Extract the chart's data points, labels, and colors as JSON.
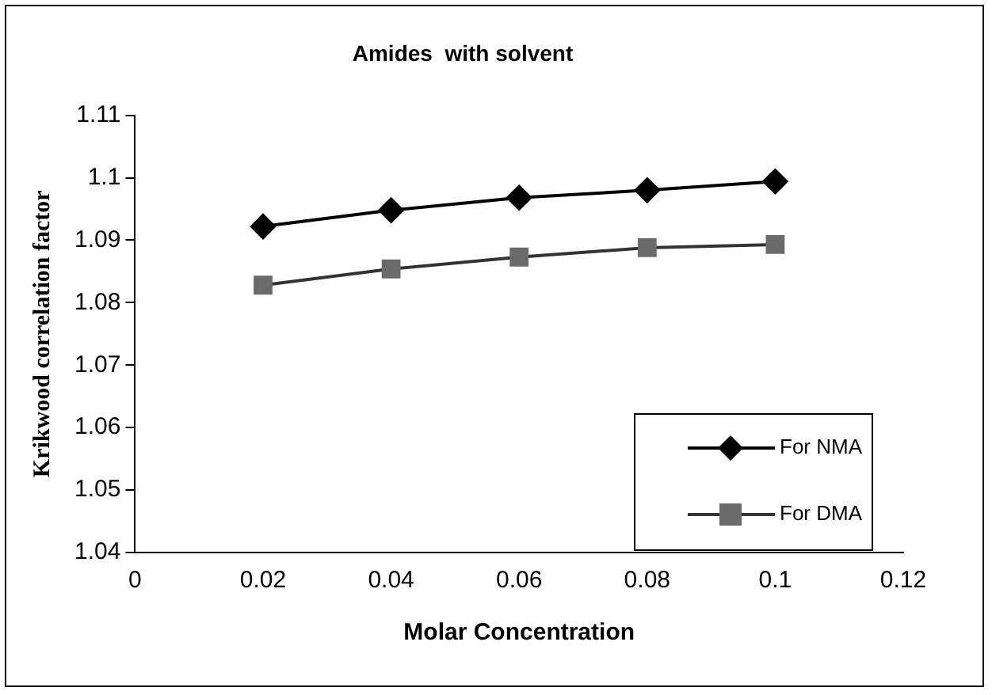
{
  "chart_data": {
    "type": "line",
    "title": "Amides  with solvent",
    "xlabel": "Molar Concentration",
    "ylabel": "Krikwood correlation factor",
    "x": [
      0.02,
      0.04,
      0.06,
      0.08,
      0.1
    ],
    "series": [
      {
        "name": "For NMA",
        "color": "#000000",
        "marker": "diamond",
        "values": [
          1.0922,
          1.0948,
          1.0968,
          1.098,
          1.0994
        ]
      },
      {
        "name": "For DMA",
        "color": "#6b6b6b",
        "marker": "square",
        "values": [
          1.0828,
          1.0854,
          1.0873,
          1.0888,
          1.0893
        ]
      }
    ],
    "xlim": [
      0,
      0.12
    ],
    "xticks": [
      0,
      0.02,
      0.04,
      0.06,
      0.08,
      0.1,
      0.12
    ],
    "ylim": [
      1.04,
      1.11
    ],
    "yticks": [
      1.04,
      1.05,
      1.06,
      1.07,
      1.08,
      1.09,
      1.1,
      1.11
    ],
    "grid": false,
    "legend": "right",
    "line_style": "solid"
  }
}
